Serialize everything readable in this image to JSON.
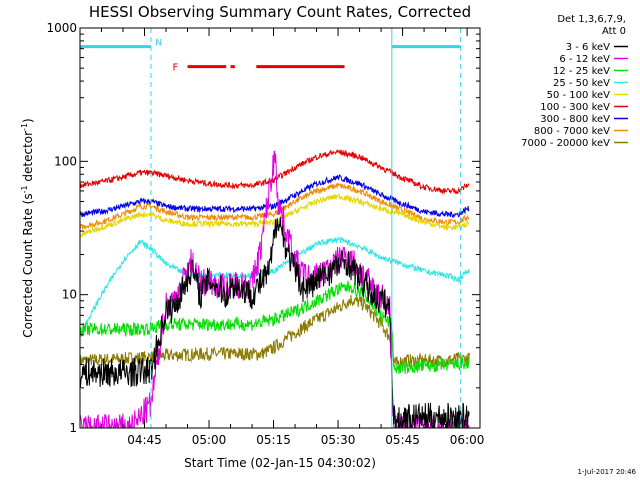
{
  "chart_data": {
    "type": "line",
    "title": "HESSI Observing Summary Count Rates, Corrected",
    "xlabel": "Start Time (02-Jan-15 04:30:02)",
    "ylabel_main": "Corrected Count Rate (s",
    "ylabel_sup1": "-1",
    "ylabel_mid": " detector",
    "ylabel_sup2": "-1",
    "ylabel_end": ")",
    "y_scale": "log",
    "ylim": [
      1,
      1000
    ],
    "xlim": [
      0,
      93
    ],
    "x_unit": "minutes after 04:30:02",
    "x_ticks": [
      {
        "x": 15,
        "label": "04:45"
      },
      {
        "x": 30,
        "label": "05:00"
      },
      {
        "x": 45,
        "label": "05:15"
      },
      {
        "x": 60,
        "label": "05:30"
      },
      {
        "x": 75,
        "label": "05:45"
      },
      {
        "x": 90,
        "label": "06:00"
      }
    ],
    "y_ticks": [
      {
        "y": 1,
        "label": "1"
      },
      {
        "y": 10,
        "label": "10"
      },
      {
        "y": 100,
        "label": "100"
      },
      {
        "y": 1000,
        "label": "1000"
      }
    ],
    "legend_header": [
      "Det 1,3,6,7,9,",
      "Att 0"
    ],
    "timestamp": "1-Jul-2017 20:46",
    "markers": {
      "N_label": "N",
      "F_label": "F",
      "N_color": "#33d6e6",
      "F_color": "#e60000",
      "N_segments": [
        [
          0,
          16.5
        ],
        [
          72.5,
          88.5
        ]
      ],
      "F_segments": [
        [
          25,
          34
        ],
        [
          35,
          36
        ],
        [
          41,
          61.5
        ]
      ],
      "dashed_lines_x": [
        16.5,
        88.5
      ],
      "solid_lines_x": [
        0,
        72.5
      ]
    },
    "series": [
      {
        "name": "3 - 6 keV",
        "color": "#000000",
        "x": [
          0,
          12,
          16.5,
          20,
          22,
          26,
          28,
          30,
          34,
          36,
          40,
          44,
          46,
          48,
          50,
          52,
          54,
          58,
          62,
          66,
          68,
          70,
          72,
          72.5,
          73,
          74,
          75
        ],
        "y": [
          2.6,
          2.6,
          2.7,
          7.5,
          8,
          16,
          10,
          13,
          10,
          12,
          10,
          15,
          40,
          22,
          15,
          11,
          12,
          15,
          18,
          12,
          10,
          9,
          8,
          3,
          1.2,
          1.1,
          1.2
        ]
      },
      {
        "name": "6 - 12 keV",
        "color": "#e000e0",
        "x": [
          0,
          12,
          16.5,
          20,
          22,
          26,
          28,
          30,
          34,
          36,
          40,
          42,
          44,
          45.5,
          46,
          48,
          50,
          52,
          54,
          58,
          62,
          66,
          68,
          70,
          72,
          72.5,
          73,
          75
        ],
        "y": [
          1,
          1,
          1.5,
          8.5,
          9,
          18,
          12,
          13,
          11,
          12,
          12,
          22,
          60,
          120,
          50,
          30,
          18,
          14,
          13,
          16,
          20,
          14,
          11,
          10,
          8,
          2,
          1,
          1
        ]
      },
      {
        "name": "12 - 25 keV",
        "color": "#00e000",
        "x": [
          0,
          12,
          16.5,
          20,
          30,
          40,
          45,
          50,
          55,
          60,
          63,
          66,
          70,
          72.5,
          73,
          80,
          88,
          90
        ],
        "y": [
          5.5,
          5.5,
          5.6,
          6,
          6,
          6,
          6.5,
          7.5,
          9,
          11,
          11.5,
          10,
          7,
          6,
          2.8,
          2.9,
          3,
          3
        ]
      },
      {
        "name": "25 - 50 keV",
        "color": "#33e6e6",
        "x": [
          0,
          5,
          10,
          14,
          16.5,
          20,
          25,
          30,
          35,
          40,
          45,
          50,
          55,
          60,
          65,
          70,
          75,
          80,
          85,
          88,
          90
        ],
        "y": [
          5,
          10,
          18,
          25,
          22,
          17,
          14,
          14,
          14,
          14,
          15,
          19,
          24,
          26,
          23,
          19,
          17,
          15,
          14,
          13,
          15
        ]
      },
      {
        "name": "50 - 100 keV",
        "color": "#e6d600",
        "x": [
          0,
          5,
          10,
          14,
          16.5,
          20,
          25,
          30,
          35,
          40,
          45,
          50,
          55,
          60,
          65,
          70,
          75,
          80,
          85,
          88,
          90
        ],
        "y": [
          28,
          32,
          36,
          40,
          40,
          36,
          34,
          34,
          34,
          34,
          35,
          42,
          50,
          55,
          50,
          44,
          40,
          35,
          32,
          32,
          34
        ]
      },
      {
        "name": "100 - 300 keV",
        "color": "#e60000",
        "x": [
          0,
          5,
          10,
          14,
          16.5,
          20,
          25,
          30,
          35,
          40,
          45,
          50,
          55,
          60,
          65,
          70,
          75,
          80,
          85,
          88,
          90
        ],
        "y": [
          66,
          70,
          76,
          82,
          82,
          78,
          72,
          68,
          66,
          66,
          72,
          90,
          108,
          118,
          108,
          90,
          75,
          64,
          60,
          60,
          66
        ]
      },
      {
        "name": "300 - 800 keV",
        "color": "#0000e6",
        "x": [
          0,
          5,
          10,
          14,
          16.5,
          20,
          25,
          30,
          35,
          40,
          45,
          50,
          55,
          60,
          65,
          70,
          75,
          80,
          85,
          88,
          90
        ],
        "y": [
          40,
          42,
          46,
          50,
          50,
          46,
          44,
          44,
          44,
          44,
          46,
          56,
          68,
          76,
          68,
          56,
          48,
          42,
          40,
          40,
          44
        ]
      },
      {
        "name": "800 - 7000 keV",
        "color": "#f08c00",
        "x": [
          0,
          5,
          10,
          14,
          16.5,
          20,
          25,
          30,
          35,
          40,
          45,
          50,
          55,
          60,
          65,
          70,
          75,
          80,
          85,
          88,
          90
        ],
        "y": [
          32,
          35,
          40,
          46,
          46,
          42,
          38,
          38,
          38,
          38,
          40,
          50,
          60,
          66,
          60,
          50,
          43,
          37,
          35,
          35,
          38
        ]
      },
      {
        "name": "7000 - 20000 keV",
        "color": "#8c7a00",
        "x": [
          0,
          10,
          16.5,
          20,
          30,
          40,
          42,
          44,
          46,
          50,
          55,
          60,
          63,
          66,
          70,
          72.5,
          73,
          75,
          80,
          85,
          88,
          90
        ],
        "y": [
          3.2,
          3.3,
          3.4,
          3.5,
          3.6,
          3.6,
          3.6,
          3.8,
          4.2,
          5.2,
          6.5,
          8,
          9.2,
          8.5,
          6,
          4.5,
          3,
          3.2,
          3.2,
          3.2,
          3.3,
          3.3
        ]
      }
    ]
  }
}
